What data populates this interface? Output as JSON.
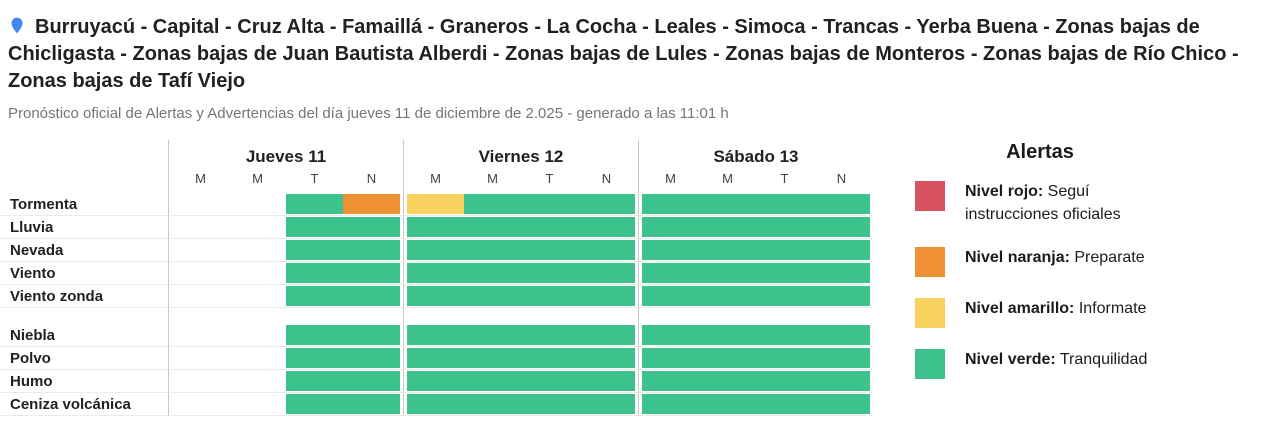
{
  "page": {
    "title": "Burruyacú - Capital - Cruz Alta - Famaillá - Graneros - La Cocha - Leales - Simoca - Trancas - Yerba Buena - Zonas bajas de Chicligasta - Zonas bajas de Juan Bautista Alberdi - Zonas bajas de Lules - Zonas bajas de Monteros - Zonas bajas de Río Chico - Zonas bajas de Tafí Viejo",
    "subtitle": "Pronóstico oficial de Alertas y Advertencias del día jueves 11 de diciembre de 2.025 - generado a las 11:01 h",
    "pin_icon": "location-pin-icon"
  },
  "colors": {
    "rojo": "#d8525f",
    "naranja": "#ee9135",
    "amarillo": "#f9d15e",
    "verde": "#3dc28e",
    "pin_blue": "#4285f4",
    "grid_line": "#c9c9c9",
    "row_line": "#ebebeb"
  },
  "chart_data": {
    "type": "heatmap",
    "x_groups": [
      "Jueves 11",
      "Viernes 12",
      "Sábado 13"
    ],
    "slot_labels": [
      "M",
      "M",
      "T",
      "N"
    ],
    "levels": [
      "",
      "verde",
      "amarillo",
      "naranja",
      "rojo"
    ],
    "row_groups": [
      {
        "rows": [
          {
            "label": "Tormenta",
            "cells": [
              [
                "",
                "",
                "verde",
                "naranja"
              ],
              [
                "amarillo",
                "verde",
                "verde",
                "verde"
              ],
              [
                "verde",
                "verde",
                "verde",
                "verde"
              ]
            ]
          },
          {
            "label": "Lluvia",
            "cells": [
              [
                "",
                "",
                "verde",
                "verde"
              ],
              [
                "verde",
                "verde",
                "verde",
                "verde"
              ],
              [
                "verde",
                "verde",
                "verde",
                "verde"
              ]
            ]
          },
          {
            "label": "Nevada",
            "cells": [
              [
                "",
                "",
                "verde",
                "verde"
              ],
              [
                "verde",
                "verde",
                "verde",
                "verde"
              ],
              [
                "verde",
                "verde",
                "verde",
                "verde"
              ]
            ]
          },
          {
            "label": "Viento",
            "cells": [
              [
                "",
                "",
                "verde",
                "verde"
              ],
              [
                "verde",
                "verde",
                "verde",
                "verde"
              ],
              [
                "verde",
                "verde",
                "verde",
                "verde"
              ]
            ]
          },
          {
            "label": "Viento zonda",
            "cells": [
              [
                "",
                "",
                "verde",
                "verde"
              ],
              [
                "verde",
                "verde",
                "verde",
                "verde"
              ],
              [
                "verde",
                "verde",
                "verde",
                "verde"
              ]
            ]
          }
        ]
      },
      {
        "rows": [
          {
            "label": "Niebla",
            "cells": [
              [
                "",
                "",
                "verde",
                "verde"
              ],
              [
                "verde",
                "verde",
                "verde",
                "verde"
              ],
              [
                "verde",
                "verde",
                "verde",
                "verde"
              ]
            ]
          },
          {
            "label": "Polvo",
            "cells": [
              [
                "",
                "",
                "verde",
                "verde"
              ],
              [
                "verde",
                "verde",
                "verde",
                "verde"
              ],
              [
                "verde",
                "verde",
                "verde",
                "verde"
              ]
            ]
          },
          {
            "label": "Humo",
            "cells": [
              [
                "",
                "",
                "verde",
                "verde"
              ],
              [
                "verde",
                "verde",
                "verde",
                "verde"
              ],
              [
                "verde",
                "verde",
                "verde",
                "verde"
              ]
            ]
          },
          {
            "label": "Ceniza volcánica",
            "cells": [
              [
                "",
                "",
                "verde",
                "verde"
              ],
              [
                "verde",
                "verde",
                "verde",
                "verde"
              ],
              [
                "verde",
                "verde",
                "verde",
                "verde"
              ]
            ]
          }
        ]
      }
    ]
  },
  "legend": {
    "title": "Alertas",
    "items": [
      {
        "label": "Nivel rojo:",
        "desc": "Seguí instrucciones oficiales",
        "color": "rojo"
      },
      {
        "label": "Nivel naranja:",
        "desc": "Preparate",
        "color": "naranja"
      },
      {
        "label": "Nivel amarillo:",
        "desc": "Informate",
        "color": "amarillo"
      },
      {
        "label": "Nivel verde:",
        "desc": "Tranquilidad",
        "color": "verde"
      }
    ]
  }
}
